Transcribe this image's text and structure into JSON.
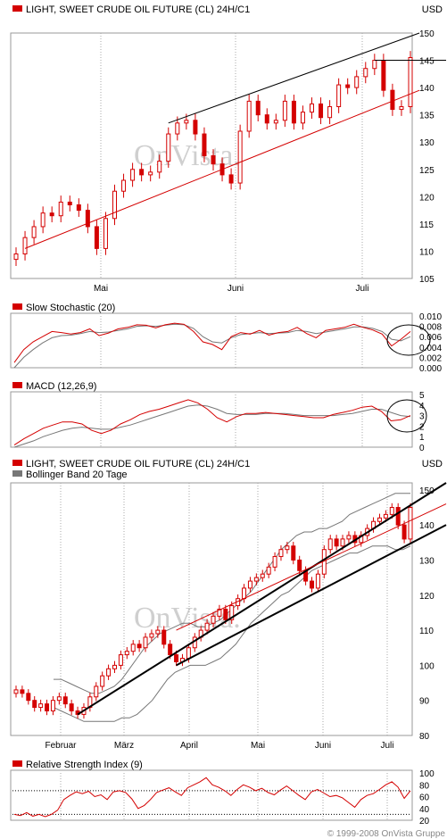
{
  "panel1": {
    "title": "LIGHT, SWEET CRUDE OIL FUTURE (CL) 24H/C1",
    "unit": "USD",
    "watermark": "OnVista."
  },
  "stoch": {
    "title": "Slow Stochastic (20)"
  },
  "macd": {
    "title": "MACD (12,26,9)"
  },
  "panel2": {
    "title": "LIGHT, SWEET CRUDE OIL FUTURE (CL) 24H/C1",
    "subtitle": "Bollinger Band 20 Tage",
    "unit": "USD",
    "watermark": "OnVista."
  },
  "rsi": {
    "title": "Relative Strength Index (9)"
  },
  "copyright": "© 1999-2008 OnVista Gruppe",
  "colors": {
    "up": "#d40000",
    "down": "#d40000",
    "accent": "#d40000",
    "band": "#777777"
  },
  "chart_data": [
    {
      "type": "candlestick",
      "title": "LIGHT, SWEET CRUDE OIL FUTURE (CL) 24H/C1",
      "ylabel": "USD",
      "ylim": [
        105,
        150
      ],
      "yticks": [
        105,
        110,
        115,
        120,
        125,
        130,
        135,
        140,
        145,
        150
      ],
      "xticks": [
        "Mai",
        "Juni",
        "Juli"
      ],
      "close": [
        109.5,
        112.5,
        114.5,
        117.0,
        116.5,
        119.0,
        118.5,
        117.5,
        114.5,
        110.5,
        116.0,
        121.0,
        123.0,
        125.0,
        124.0,
        124.5,
        126.5,
        131.5,
        133.5,
        134.0,
        131.5,
        127.5,
        126.0,
        124.0,
        122.5,
        132.0,
        137.5,
        135.0,
        133.5,
        134.0,
        137.5,
        133.5,
        135.5,
        137.0,
        134.5,
        136.5,
        140.5,
        140.0,
        142.0,
        143.5,
        145.0,
        139.5,
        136.0,
        136.5,
        145.5
      ],
      "lines": [
        {
          "name": "",
          "from": [
            1,
            110.5
          ],
          "to": [
            45,
            139.5
          ]
        },
        {
          "name": "",
          "from": [
            17,
            133.5
          ],
          "to": [
            45,
            150
          ]
        }
      ],
      "hline": 145
    },
    {
      "type": "line",
      "title": "Slow Stochastic (20)",
      "ylim": [
        0,
        0.01
      ],
      "yticks": [
        "0.010",
        "0.008",
        "0.006",
        "0.004",
        "0.002",
        "0.000"
      ],
      "series": [
        {
          "name": "",
          "values": [
            0.001,
            0.0035,
            0.005,
            0.006,
            0.007,
            0.0068,
            0.0065,
            0.0068,
            0.0075,
            0.0062,
            0.0067,
            0.0075,
            0.0078,
            0.0083,
            0.0082,
            0.0077,
            0.0083,
            0.0086,
            0.0084,
            0.007,
            0.005,
            0.0045,
            0.0035,
            0.006,
            0.0068,
            0.0065,
            0.0072,
            0.0063,
            0.0068,
            0.007,
            0.0078,
            0.0066,
            0.0058,
            0.0072,
            0.0075,
            0.0078,
            0.0084,
            0.0078,
            0.0073,
            0.0065,
            0.0042,
            0.0055,
            0.007
          ]
        },
        {
          "name": "",
          "values": [
            0.0,
            0.002,
            0.0035,
            0.0048,
            0.0058,
            0.0062,
            0.0063,
            0.0066,
            0.007,
            0.0068,
            0.0069,
            0.0072,
            0.0075,
            0.008,
            0.0081,
            0.008,
            0.0082,
            0.0084,
            0.0083,
            0.0076,
            0.006,
            0.005,
            0.0048,
            0.0058,
            0.0064,
            0.0066,
            0.0068,
            0.0066,
            0.0067,
            0.0068,
            0.0072,
            0.007,
            0.0066,
            0.0069,
            0.0072,
            0.0075,
            0.0079,
            0.0079,
            0.0076,
            0.007,
            0.0055,
            0.0052,
            0.006
          ]
        }
      ]
    },
    {
      "type": "line",
      "title": "MACD (12,26,9)",
      "ylim": [
        0,
        5
      ],
      "yticks": [
        5,
        4,
        3,
        2,
        1,
        0
      ],
      "series": [
        {
          "name": "",
          "values": [
            0.2,
            0.8,
            1.3,
            1.8,
            2.1,
            2.4,
            2.4,
            2.2,
            1.6,
            1.3,
            1.6,
            2.2,
            2.6,
            3.1,
            3.4,
            3.6,
            3.9,
            4.2,
            4.5,
            4.2,
            3.6,
            2.8,
            2.4,
            2.9,
            3.2,
            3.2,
            3.3,
            3.2,
            3.1,
            3.0,
            2.9,
            2.8,
            2.8,
            3.1,
            3.3,
            3.5,
            3.8,
            3.9,
            3.4,
            2.5,
            2.6,
            3.0
          ]
        },
        {
          "name": "",
          "values": [
            0.0,
            0.3,
            0.6,
            1.0,
            1.3,
            1.6,
            1.8,
            1.9,
            1.8,
            1.7,
            1.7,
            1.9,
            2.1,
            2.4,
            2.7,
            3.0,
            3.3,
            3.6,
            3.9,
            4.0,
            3.9,
            3.6,
            3.2,
            3.1,
            3.1,
            3.1,
            3.2,
            3.2,
            3.2,
            3.1,
            3.0,
            3.0,
            3.0,
            3.0,
            3.1,
            3.2,
            3.4,
            3.6,
            3.6,
            3.3,
            3.0,
            2.9
          ]
        }
      ]
    },
    {
      "type": "candlestick",
      "title": "LIGHT, SWEET CRUDE OIL FUTURE (CL) 24H/C1",
      "subtitle": "Bollinger Band 20 Tage",
      "ylabel": "USD",
      "ylim": [
        80,
        152
      ],
      "yticks": [
        80,
        90,
        100,
        110,
        120,
        130,
        140,
        150
      ],
      "xticks": [
        "Februar",
        "März",
        "April",
        "Mai",
        "Juni",
        "Juli"
      ],
      "close": [
        93,
        92,
        90,
        88,
        89,
        87,
        90,
        91,
        89,
        87,
        86,
        88,
        91,
        94,
        97,
        99,
        100,
        103,
        104,
        106,
        105,
        108,
        109,
        110,
        106,
        103,
        101,
        102,
        105,
        108,
        110,
        112,
        114,
        116,
        113,
        117,
        119,
        122,
        124,
        125,
        126,
        128,
        131,
        133,
        134,
        130,
        127,
        124,
        122,
        126,
        133,
        136,
        134,
        136,
        137,
        135,
        137,
        139,
        141,
        142,
        143,
        145,
        140,
        136,
        145
      ],
      "bollinger_upper": [
        96,
        96,
        95,
        94,
        93,
        92,
        92,
        93,
        94,
        96,
        99,
        102,
        105,
        107,
        109,
        110,
        111,
        112,
        112,
        111,
        111,
        112,
        113,
        115,
        117,
        119,
        121,
        124,
        127,
        130,
        133,
        135,
        137,
        138,
        138,
        139,
        139,
        140,
        141,
        143,
        144,
        145,
        146,
        147,
        148,
        149,
        149,
        149
      ],
      "bollinger_lower": [
        88,
        87,
        86,
        85,
        84,
        84,
        84,
        84,
        84,
        85,
        85,
        86,
        88,
        90,
        93,
        96,
        98,
        99,
        100,
        100,
        100,
        101,
        102,
        104,
        106,
        109,
        112,
        114,
        116,
        118,
        120,
        121,
        123,
        125,
        127,
        128,
        129,
        130,
        131,
        132,
        132,
        133,
        134,
        134,
        134,
        133,
        133,
        134
      ],
      "lines": [
        {
          "name": "",
          "from": [
            10,
            86
          ],
          "to": [
            64,
            152
          ]
        },
        {
          "name": "",
          "from": [
            26,
            100
          ],
          "to": [
            64,
            140
          ]
        },
        {
          "name": "",
          "from": [
            26,
            110
          ],
          "to": [
            64,
            146
          ]
        }
      ]
    },
    {
      "type": "line",
      "title": "Relative Strength Index (9)",
      "ylim": [
        20,
        100
      ],
      "yticks": [
        100,
        80,
        60,
        40,
        20
      ],
      "reference_lines": [
        30,
        70
      ],
      "series": [
        {
          "name": "",
          "values": [
            30,
            28,
            33,
            27,
            30,
            26,
            30,
            37,
            55,
            62,
            68,
            65,
            69,
            60,
            63,
            55,
            68,
            70,
            67,
            56,
            40,
            45,
            55,
            67,
            71,
            75,
            68,
            62,
            75,
            80,
            85,
            92,
            80,
            76,
            70,
            62,
            72,
            80,
            76,
            70,
            74,
            67,
            63,
            71,
            78,
            70,
            62,
            55,
            68,
            72,
            66,
            60,
            62,
            58,
            50,
            42,
            55,
            62,
            65,
            72,
            80,
            85,
            76,
            57,
            70
          ]
        }
      ]
    }
  ]
}
